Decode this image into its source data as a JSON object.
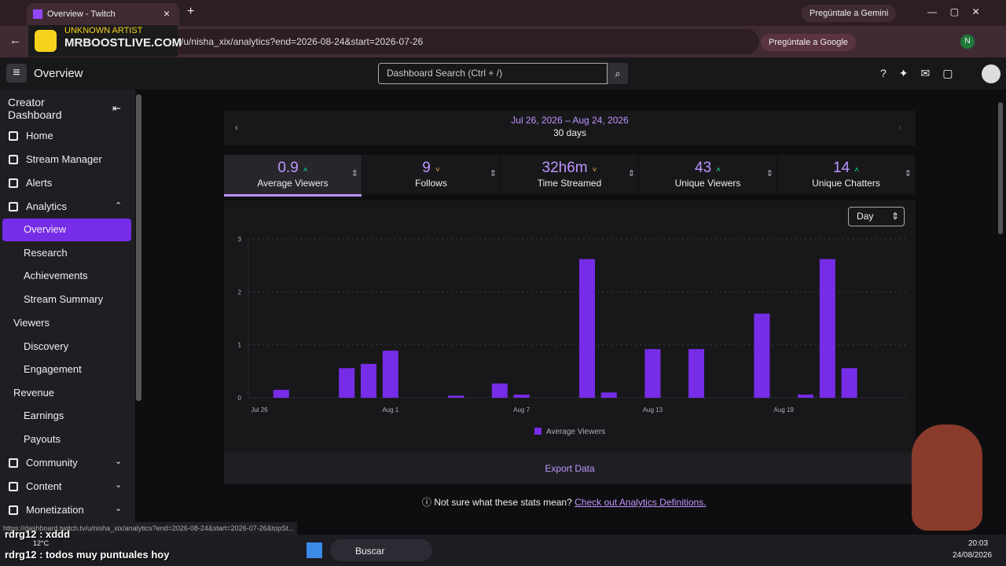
{
  "browser": {
    "tab_title": "Overview - Twitch",
    "gemini": "Pregúntale a Gemini",
    "url": "/u/nisha_xix/analytics?end=2026-08-24&start=2026-07-26",
    "google": "Pregúntale a Google",
    "profile": "N",
    "status_url": "https://dashboard.twitch.tv/u/nisha_xix/analytics?end=2026-08-24&start=2026-07-26&topSt..."
  },
  "overlay": {
    "artist": "UNKNOWN ARTIST",
    "site": "MRBOOSTLIVE.COM"
  },
  "header": {
    "title": "Overview",
    "search": "Dashboard Search (Ctrl + /)"
  },
  "sidebar": {
    "title": "Creator Dashboard",
    "items": [
      {
        "label": "Home",
        "kind": "main"
      },
      {
        "label": "Stream Manager",
        "kind": "main"
      },
      {
        "label": "Alerts",
        "kind": "main"
      },
      {
        "label": "Analytics",
        "kind": "main",
        "chevron": "up"
      },
      {
        "label": "Overview",
        "kind": "sub",
        "active": true
      },
      {
        "label": "Research",
        "kind": "sub"
      },
      {
        "label": "Achievements",
        "kind": "sub"
      },
      {
        "label": "Stream Summary",
        "kind": "sub"
      },
      {
        "label": "Viewers",
        "kind": "group"
      },
      {
        "label": "Discovery",
        "kind": "sub"
      },
      {
        "label": "Engagement",
        "kind": "sub"
      },
      {
        "label": "Revenue",
        "kind": "group"
      },
      {
        "label": "Earnings",
        "kind": "sub"
      },
      {
        "label": "Payouts",
        "kind": "sub"
      },
      {
        "label": "Community",
        "kind": "main",
        "chevron": "down"
      },
      {
        "label": "Content",
        "kind": "main",
        "chevron": "down"
      },
      {
        "label": "Monetization",
        "kind": "main",
        "chevron": "down"
      }
    ]
  },
  "date_range": {
    "range": "Jul 26, 2026 – Aug 24, 2026",
    "days": "30 days"
  },
  "stats": [
    {
      "value": "0.9",
      "label": "Average Viewers",
      "trend": "up",
      "active": true
    },
    {
      "value": "9",
      "label": "Follows",
      "trend": "down"
    },
    {
      "value": "32h6m",
      "label": "Time Streamed",
      "trend": "down"
    },
    {
      "value": "43",
      "label": "Unique Viewers",
      "trend": "up"
    },
    {
      "value": "14",
      "label": "Unique Chatters",
      "trend": "up"
    }
  ],
  "period": "Day",
  "chart_data": {
    "type": "bar",
    "categories": [
      "Jul 26",
      null,
      null,
      null,
      null,
      null,
      "Aug 1",
      null,
      null,
      null,
      null,
      null,
      "Aug 7",
      null,
      null,
      null,
      null,
      null,
      "Aug 13",
      null,
      null,
      null,
      null,
      null,
      "Aug 19",
      null,
      null,
      null,
      null,
      null
    ],
    "series": [
      {
        "name": "Average Viewers",
        "color": "#772ce8",
        "values": [
          0,
          0.15,
          0,
          0,
          0.56,
          0.64,
          0.89,
          0,
          0,
          0.04,
          0,
          0.27,
          0.06,
          0,
          0,
          2.62,
          0.1,
          0,
          0.92,
          0,
          0.92,
          0,
          0,
          1.59,
          0,
          0.06,
          2.62,
          0.56,
          0,
          0
        ]
      }
    ],
    "ylim": [
      0,
      3
    ],
    "yticks": [
      0,
      1,
      2,
      3
    ],
    "grid": true
  },
  "export": "Export Data",
  "help": {
    "question": "Not sure what these stats mean?",
    "link": "Check out Analytics Definitions."
  },
  "chat": [
    "rdrg12 : xddd",
    "rdrg12 : todos muy puntuales hoy"
  ],
  "taskbar": {
    "weather": "12°C",
    "search": "Buscar",
    "time": "20:03",
    "date": "24/08/2026"
  }
}
